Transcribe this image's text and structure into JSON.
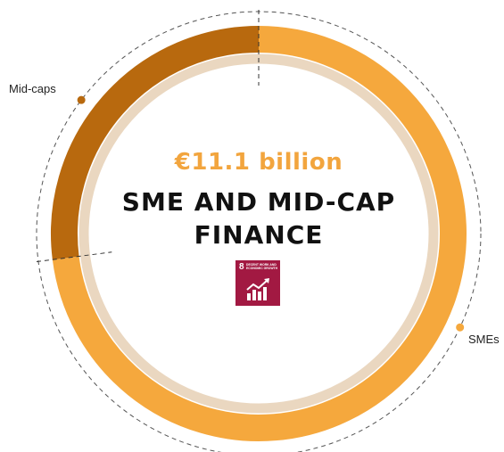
{
  "chart_data": {
    "type": "pie",
    "style": "donut",
    "categories": [
      "SMEs",
      "Mid-caps"
    ],
    "values": [
      73,
      27
    ],
    "colors": [
      "#f5a83d",
      "#b8690e"
    ],
    "legend_placement": "outside labels"
  },
  "center": {
    "amount": "€11.1 billion",
    "title_line1": "SME AND MID-CAP",
    "title_line2": "FINANCE"
  },
  "labels": {
    "midcaps": "Mid-caps",
    "smes": "SMEs"
  },
  "sdg_badge": {
    "number": "8",
    "text": "DECENT WORK AND ECONOMIC GROWTH",
    "icon": "growth-chart-icon",
    "color": "#a21942"
  }
}
